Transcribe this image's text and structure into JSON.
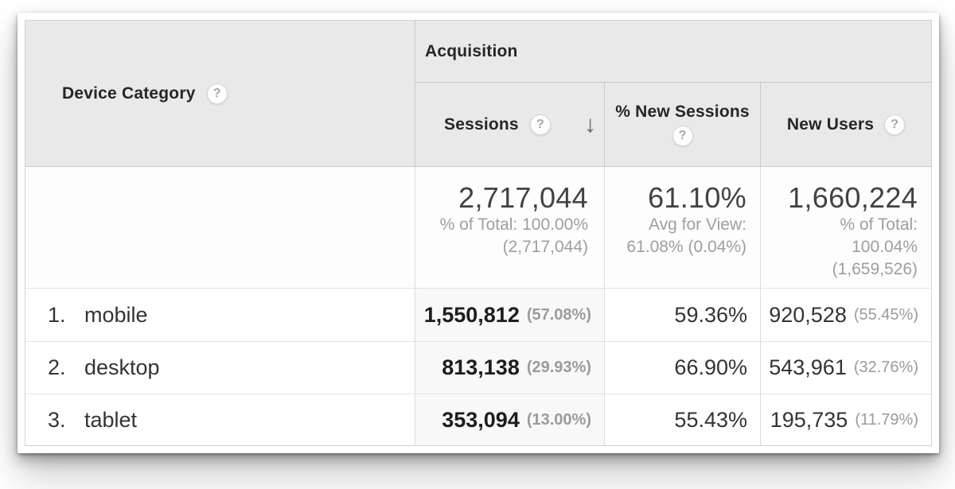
{
  "table": {
    "dimension_label": "Device Category",
    "group_label": "Acquisition",
    "columns": [
      {
        "label": "Sessions",
        "sorted": "descending"
      },
      {
        "label": "% New Sessions"
      },
      {
        "label": "New Users"
      }
    ],
    "summary": {
      "sessions": {
        "value": "2,717,044",
        "subtext": "% of Total: 100.00%\n(2,717,044)"
      },
      "new_sessions": {
        "value": "61.10%",
        "subtext": "Avg for View:\n61.08% (0.04%)"
      },
      "new_users": {
        "value": "1,660,224",
        "subtext": "% of Total:\n100.04%\n(1,659,526)"
      }
    },
    "rows": [
      {
        "index": "1.",
        "device": "mobile",
        "sessions": "1,550,812",
        "sessions_pct": "(57.08%)",
        "new_sessions": "59.36%",
        "new_users": "920,528",
        "new_users_pct": "(55.45%)"
      },
      {
        "index": "2.",
        "device": "desktop",
        "sessions": "813,138",
        "sessions_pct": "(29.93%)",
        "new_sessions": "66.90%",
        "new_users": "543,961",
        "new_users_pct": "(32.76%)"
      },
      {
        "index": "3.",
        "device": "tablet",
        "sessions": "353,094",
        "sessions_pct": "(13.00%)",
        "new_sessions": "55.43%",
        "new_users": "195,735",
        "new_users_pct": "(11.79%)"
      }
    ]
  },
  "icons": {
    "help": "?",
    "sort_desc": "↓"
  },
  "colors": {
    "header_bg": "#e9e9e9",
    "sorted_column_bg": "#f8f8f8",
    "border_strong": "#c9c9c9",
    "border_light": "#e4e4e4",
    "muted_text": "#9b9b9b",
    "arrow": "#5d6165"
  }
}
